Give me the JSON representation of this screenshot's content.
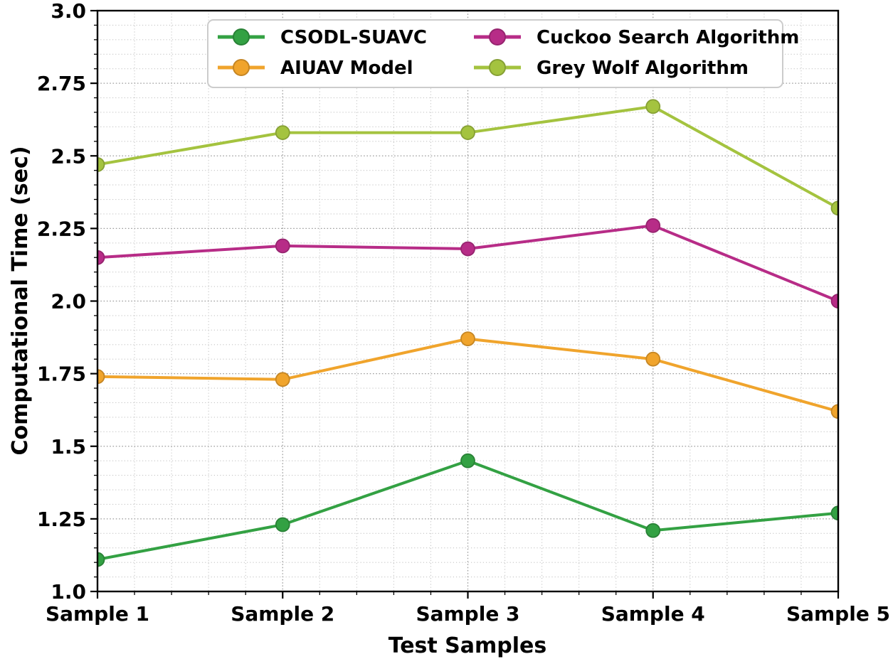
{
  "chart_data": {
    "type": "line",
    "title": "",
    "xlabel": "Test Samples",
    "ylabel": "Computational Time (sec)",
    "categories": [
      "Sample 1",
      "Sample 2",
      "Sample 3",
      "Sample 4",
      "Sample 5"
    ],
    "series": [
      {
        "name": "CSODL-SUAVC",
        "color": "#33a143",
        "edge_color": "#298136",
        "values": [
          1.11,
          1.23,
          1.45,
          1.21,
          1.27
        ]
      },
      {
        "name": "AIUAV Model",
        "color": "#f0a42c",
        "edge_color": "#c58624",
        "values": [
          1.74,
          1.73,
          1.87,
          1.8,
          1.62
        ]
      },
      {
        "name": "Cuckoo Search Algorithm",
        "color": "#b72c87",
        "edge_color": "#96246f",
        "values": [
          2.15,
          2.19,
          2.18,
          2.26,
          2.0
        ]
      },
      {
        "name": "Grey Wolf Algorithm",
        "color": "#a4c33f",
        "edge_color": "#86a034",
        "values": [
          2.47,
          2.58,
          2.58,
          2.67,
          2.32
        ]
      }
    ],
    "ylim": [
      1.0,
      3.0
    ],
    "y_major_step": 0.25,
    "y_minor_step": 0.05,
    "y_major_tick_labels": [
      "1.0",
      "1.25",
      "1.5",
      "1.75",
      "2.0",
      "2.25",
      "2.5",
      "2.75",
      "3.0"
    ],
    "x_minor_per_interval": 4,
    "grid": "dotted major and minor, both axes",
    "axis_color": "#000000",
    "grid_major_color": "#9c9c9c",
    "grid_minor_color": "#c6c6c6",
    "legend": {
      "position": "upper center",
      "columns": 2,
      "entries": [
        "CSODL-SUAVC",
        "AIUAV Model",
        "Cuckoo Search Algorithm",
        "Grey Wolf Algorithm"
      ],
      "frame_color": "#cccccc",
      "background": "#ffffff"
    }
  }
}
